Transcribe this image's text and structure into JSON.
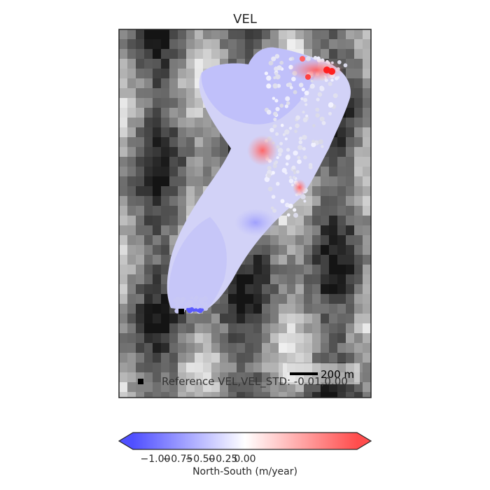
{
  "chart_data": {
    "type": "scatter",
    "title": "VEL",
    "description_background": "grayscale hillshade terrain",
    "colormap": "bwr",
    "colorbar": {
      "label": "North-South (m/year)",
      "ticks": [
        "−1.00",
        "−0.75",
        "−0.50",
        "−0.25",
        "0.00"
      ],
      "vmin": -1.25,
      "vmax": 1.25,
      "extend": "both",
      "colors": {
        "negative": "#4d4dff",
        "zero": "#ffffff",
        "positive": "#ff4d4d"
      }
    },
    "legend": {
      "location": "lower-left",
      "entries": [
        {
          "marker": "black-square",
          "label": "Reference VEL,VEL_STD: -0.01,0.00"
        }
      ]
    },
    "scalebar": {
      "label": "200 m",
      "location": "lower-right"
    },
    "axes": {
      "ticks_visible": false,
      "grid": false
    }
  }
}
